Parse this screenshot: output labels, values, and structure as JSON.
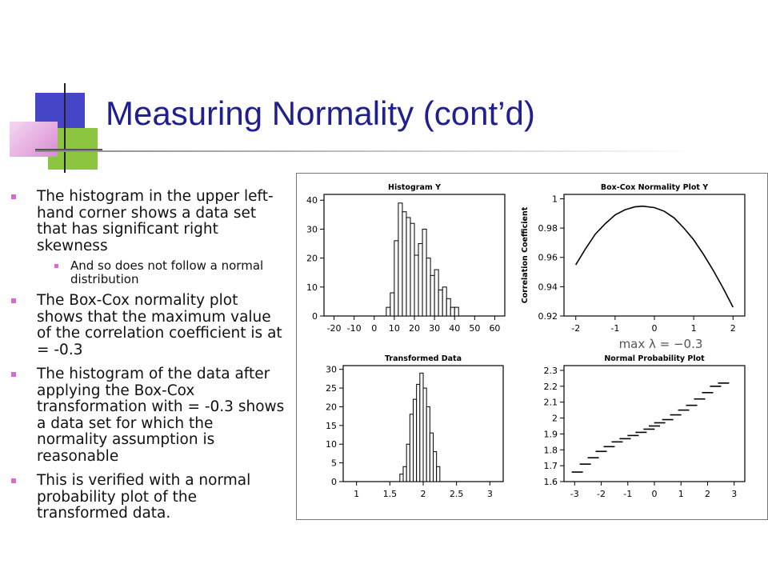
{
  "title": "Measuring Normality (cont’d)",
  "bullets": [
    {
      "level": 1,
      "text": "The histogram in the upper left-hand corner shows a data set that has significant right skewness"
    },
    {
      "level": 2,
      "text": "And so does not follow a normal distribution"
    },
    {
      "level": 1,
      "text": "The Box-Cox normality plot shows that the maximum value of the correlation coefficient is at    = -0.3"
    },
    {
      "level": 1,
      "text": "The histogram of the data after applying the Box-Cox transformation with    = -0.3 shows a data set for which the normality assumption is reasonable"
    },
    {
      "level": 1,
      "text": "This is verified with a normal probability plot of the transformed data."
    }
  ],
  "colors": {
    "title": "#1f1f8f",
    "bullet": "#d96ad2",
    "deco_blue": "#4545c8",
    "deco_green": "#8cc641",
    "deco_pink": "#d98cd2"
  },
  "chart_data": [
    {
      "type": "bar",
      "title": "Histogram Y",
      "xlim": [
        -25,
        65
      ],
      "ylim": [
        0,
        42
      ],
      "xticks": [
        "-20",
        "-10",
        "0",
        "10",
        "20",
        "30",
        "40",
        "50",
        "60"
      ],
      "yticks": [
        "0",
        "10",
        "20",
        "30",
        "40"
      ],
      "bin_width": 2,
      "bins": [
        6,
        8,
        10,
        12,
        14,
        16,
        18,
        20,
        22,
        24,
        26,
        28,
        30,
        32,
        34,
        36,
        38,
        40
      ],
      "values": [
        3,
        8,
        26,
        39,
        36,
        34,
        32,
        21,
        25,
        30,
        20,
        14,
        16,
        9,
        10,
        6,
        3,
        3
      ]
    },
    {
      "type": "line",
      "title": "Box-Cox Normality Plot Y",
      "ylabel": "Correlation Coefficient",
      "xlim": [
        -2.3,
        2.3
      ],
      "ylim": [
        0.92,
        1.003
      ],
      "xticks": [
        "-2",
        "-1",
        "0",
        "1",
        "2"
      ],
      "yticks": [
        "0.92",
        "0.94",
        "0.96",
        "0.98",
        "1"
      ],
      "annotation": "max λ = −0.3",
      "x": [
        -2.0,
        -1.75,
        -1.5,
        -1.25,
        -1.0,
        -0.75,
        -0.5,
        -0.3,
        0.0,
        0.25,
        0.5,
        0.75,
        1.0,
        1.25,
        1.5,
        1.75,
        2.0
      ],
      "y": [
        0.955,
        0.966,
        0.976,
        0.983,
        0.989,
        0.9925,
        0.9945,
        0.995,
        0.994,
        0.9915,
        0.987,
        0.98,
        0.972,
        0.962,
        0.951,
        0.939,
        0.926
      ]
    },
    {
      "type": "bar",
      "title": "Transformed Data",
      "xlim": [
        0.8,
        3.2
      ],
      "ylim": [
        0,
        31
      ],
      "xticks": [
        "1",
        "1.5",
        "2",
        "2.5",
        "3"
      ],
      "yticks": [
        "0",
        "5",
        "10",
        "15",
        "20",
        "25",
        "30"
      ],
      "bin_width": 0.05,
      "bins": [
        1.65,
        1.7,
        1.75,
        1.8,
        1.85,
        1.9,
        1.95,
        2.0,
        2.05,
        2.1,
        2.15,
        2.2
      ],
      "values": [
        2,
        4,
        10,
        18,
        22,
        26,
        29,
        25,
        20,
        13,
        8,
        4
      ]
    },
    {
      "type": "scatter",
      "title": "Normal Probability Plot",
      "xlim": [
        -3.4,
        3.4
      ],
      "ylim": [
        1.6,
        2.33
      ],
      "xticks": [
        "-3",
        "-2",
        "-1",
        "0",
        "1",
        "2",
        "3"
      ],
      "yticks": [
        "1.6",
        "1.7",
        "1.8",
        "1.9",
        "2",
        "2.1",
        "2.2",
        "2.3"
      ],
      "x": [
        -2.9,
        -2.6,
        -2.3,
        -2.0,
        -1.7,
        -1.4,
        -1.1,
        -0.8,
        -0.5,
        -0.2,
        0.0,
        0.2,
        0.5,
        0.8,
        1.1,
        1.4,
        1.7,
        2.0,
        2.3,
        2.6
      ],
      "y": [
        1.66,
        1.71,
        1.75,
        1.79,
        1.82,
        1.85,
        1.87,
        1.89,
        1.91,
        1.93,
        1.95,
        1.97,
        1.99,
        2.02,
        2.05,
        2.08,
        2.12,
        2.16,
        2.2,
        2.22
      ]
    }
  ]
}
